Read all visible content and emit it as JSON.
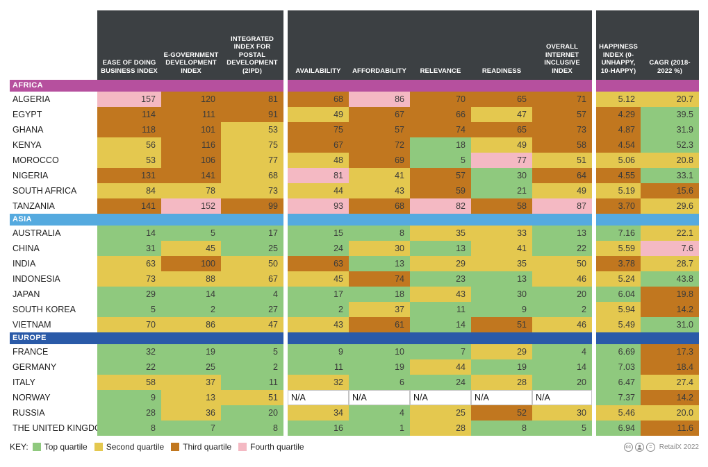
{
  "colors": {
    "header_bg": "#3c4043",
    "quartiles": {
      "g": "#8fc97e",
      "y": "#e4c84f",
      "o": "#c1771f",
      "p": "#f4b9c3",
      "na": "#ffffff"
    }
  },
  "columns": [
    "EASE OF DOING BUSINESS INDEX",
    "E-GOVERNMENT DEVELOPMENT INDEX",
    "INTEGRATED INDEX FOR POSTAL DEVELOPMENT (2IPD)",
    "AVAILABILITY",
    "AFFORDABILITY",
    "RELEVANCE",
    "READINESS",
    "OVERALL INTERNET INCLUSIVE INDEX",
    "HAPPINESS INDEX (0-UNHAPPY, 10-HAPPY)",
    "CAGR (2018-2022 %)"
  ],
  "chart_data": {
    "type": "table",
    "title": "",
    "column_headers": [
      "EASE OF DOING BUSINESS INDEX",
      "E-GOVERNMENT DEVELOPMENT INDEX",
      "INTEGRATED INDEX FOR POSTAL DEVELOPMENT (2IPD)",
      "AVAILABILITY",
      "AFFORDABILITY",
      "RELEVANCE",
      "READINESS",
      "OVERALL INTERNET INCLUSIVE INDEX",
      "HAPPINESS INDEX (0-UNHAPPY, 10-HAPPY)",
      "CAGR (2018-2022 %)"
    ],
    "quartile_legend": {
      "g": "Top quartile",
      "y": "Second quartile",
      "o": "Third quartile",
      "p": "Fourth quartile"
    }
  },
  "regions": [
    {
      "name": "AFRICA",
      "color": "#b6509e",
      "rows": [
        {
          "country": "ALGERIA",
          "values": [
            "157",
            "120",
            "81",
            "68",
            "86",
            "70",
            "65",
            "71",
            "5.12",
            "20.7"
          ],
          "q": [
            "p",
            "o",
            "o",
            "o",
            "p",
            "o",
            "o",
            "o",
            "y",
            "y"
          ]
        },
        {
          "country": "EGYPT",
          "values": [
            "114",
            "111",
            "91",
            "49",
            "67",
            "66",
            "47",
            "57",
            "4.29",
            "39.5"
          ],
          "q": [
            "o",
            "o",
            "o",
            "y",
            "o",
            "o",
            "y",
            "o",
            "o",
            "g"
          ]
        },
        {
          "country": "GHANA",
          "values": [
            "118",
            "101",
            "53",
            "75",
            "57",
            "74",
            "65",
            "73",
            "4.87",
            "31.9"
          ],
          "q": [
            "o",
            "o",
            "y",
            "o",
            "o",
            "o",
            "o",
            "o",
            "o",
            "g"
          ]
        },
        {
          "country": "KENYA",
          "values": [
            "56",
            "116",
            "75",
            "67",
            "72",
            "18",
            "49",
            "58",
            "4.54",
            "52.3"
          ],
          "q": [
            "y",
            "o",
            "y",
            "o",
            "o",
            "g",
            "y",
            "o",
            "o",
            "g"
          ]
        },
        {
          "country": "MOROCCO",
          "values": [
            "53",
            "106",
            "77",
            "48",
            "69",
            "5",
            "77",
            "51",
            "5.06",
            "20.8"
          ],
          "q": [
            "y",
            "o",
            "y",
            "y",
            "o",
            "g",
            "p",
            "y",
            "y",
            "y"
          ]
        },
        {
          "country": "NIGERIA",
          "values": [
            "131",
            "141",
            "68",
            "81",
            "41",
            "57",
            "30",
            "64",
            "4.55",
            "33.1"
          ],
          "q": [
            "o",
            "o",
            "y",
            "p",
            "y",
            "o",
            "g",
            "o",
            "o",
            "g"
          ]
        },
        {
          "country": "SOUTH AFRICA",
          "values": [
            "84",
            "78",
            "73",
            "44",
            "43",
            "59",
            "21",
            "49",
            "5.19",
            "15.6"
          ],
          "q": [
            "y",
            "y",
            "y",
            "y",
            "y",
            "o",
            "g",
            "y",
            "y",
            "o"
          ]
        },
        {
          "country": "TANZANIA",
          "values": [
            "141",
            "152",
            "99",
            "93",
            "68",
            "82",
            "58",
            "87",
            "3.70",
            "29.6"
          ],
          "q": [
            "o",
            "p",
            "o",
            "p",
            "o",
            "p",
            "o",
            "p",
            "o",
            "y"
          ]
        }
      ]
    },
    {
      "name": "ASIA",
      "color": "#55aadf",
      "rows": [
        {
          "country": "AUSTRALIA",
          "values": [
            "14",
            "5",
            "17",
            "15",
            "8",
            "35",
            "33",
            "13",
            "7.16",
            "22.1"
          ],
          "q": [
            "g",
            "g",
            "g",
            "g",
            "g",
            "y",
            "y",
            "g",
            "g",
            "y"
          ]
        },
        {
          "country": "CHINA",
          "values": [
            "31",
            "45",
            "25",
            "24",
            "30",
            "13",
            "41",
            "22",
            "5.59",
            "7.6"
          ],
          "q": [
            "g",
            "y",
            "g",
            "g",
            "y",
            "g",
            "y",
            "g",
            "y",
            "p"
          ]
        },
        {
          "country": "INDIA",
          "values": [
            "63",
            "100",
            "50",
            "63",
            "13",
            "29",
            "35",
            "50",
            "3.78",
            "28.7"
          ],
          "q": [
            "y",
            "o",
            "y",
            "o",
            "g",
            "y",
            "y",
            "y",
            "o",
            "y"
          ]
        },
        {
          "country": "INDONESIA",
          "values": [
            "73",
            "88",
            "67",
            "45",
            "74",
            "23",
            "13",
            "46",
            "5.24",
            "43.8"
          ],
          "q": [
            "y",
            "y",
            "y",
            "y",
            "o",
            "g",
            "g",
            "y",
            "y",
            "g"
          ]
        },
        {
          "country": "JAPAN",
          "values": [
            "29",
            "14",
            "4",
            "17",
            "18",
            "43",
            "30",
            "20",
            "6.04",
            "19.8"
          ],
          "q": [
            "g",
            "g",
            "g",
            "g",
            "g",
            "y",
            "g",
            "g",
            "g",
            "o"
          ]
        },
        {
          "country": "SOUTH KOREA",
          "values": [
            "5",
            "2",
            "27",
            "2",
            "37",
            "11",
            "9",
            "2",
            "5.94",
            "14.2"
          ],
          "q": [
            "g",
            "g",
            "g",
            "g",
            "y",
            "g",
            "g",
            "g",
            "y",
            "o"
          ]
        },
        {
          "country": "VIETNAM",
          "values": [
            "70",
            "86",
            "47",
            "43",
            "61",
            "14",
            "51",
            "46",
            "5.49",
            "31.0"
          ],
          "q": [
            "y",
            "y",
            "y",
            "y",
            "o",
            "g",
            "o",
            "y",
            "y",
            "g"
          ]
        }
      ]
    },
    {
      "name": "EUROPE",
      "color": "#2a5aa8",
      "rows": [
        {
          "country": "FRANCE",
          "values": [
            "32",
            "19",
            "5",
            "9",
            "10",
            "7",
            "29",
            "4",
            "6.69",
            "17.3"
          ],
          "q": [
            "g",
            "g",
            "g",
            "g",
            "g",
            "g",
            "y",
            "g",
            "g",
            "o"
          ]
        },
        {
          "country": "GERMANY",
          "values": [
            "22",
            "25",
            "2",
            "11",
            "19",
            "44",
            "19",
            "14",
            "7.03",
            "18.4"
          ],
          "q": [
            "g",
            "g",
            "g",
            "g",
            "g",
            "y",
            "g",
            "g",
            "g",
            "o"
          ]
        },
        {
          "country": "ITALY",
          "values": [
            "58",
            "37",
            "11",
            "32",
            "6",
            "24",
            "28",
            "20",
            "6.47",
            "27.4"
          ],
          "q": [
            "y",
            "y",
            "g",
            "y",
            "g",
            "g",
            "y",
            "g",
            "g",
            "y"
          ]
        },
        {
          "country": "NORWAY",
          "values": [
            "9",
            "13",
            "51",
            "N/A",
            "N/A",
            "N/A",
            "N/A",
            "N/A",
            "7.37",
            "14.2"
          ],
          "q": [
            "g",
            "y",
            "y",
            "na",
            "na",
            "na",
            "na",
            "na",
            "g",
            "o"
          ]
        },
        {
          "country": "RUSSIA",
          "values": [
            "28",
            "36",
            "20",
            "34",
            "4",
            "25",
            "52",
            "30",
            "5.46",
            "20.0"
          ],
          "q": [
            "g",
            "y",
            "g",
            "y",
            "g",
            "y",
            "o",
            "y",
            "y",
            "y"
          ]
        },
        {
          "country": "THE UNITED KINGDOM",
          "values": [
            "8",
            "7",
            "8",
            "16",
            "1",
            "28",
            "8",
            "5",
            "6.94",
            "11.6"
          ],
          "q": [
            "g",
            "g",
            "g",
            "g",
            "g",
            "y",
            "g",
            "g",
            "g",
            "o"
          ]
        }
      ]
    }
  ],
  "legend": {
    "label": "KEY:",
    "items": [
      {
        "label": "Top quartile",
        "q": "g"
      },
      {
        "label": "Second quartile",
        "q": "y"
      },
      {
        "label": "Third quartile",
        "q": "o"
      },
      {
        "label": "Fourth quartile",
        "q": "p"
      }
    ]
  },
  "credit": {
    "cc_glyph": "cc",
    "nd_glyph": "=",
    "text": "RetailX 2022"
  }
}
